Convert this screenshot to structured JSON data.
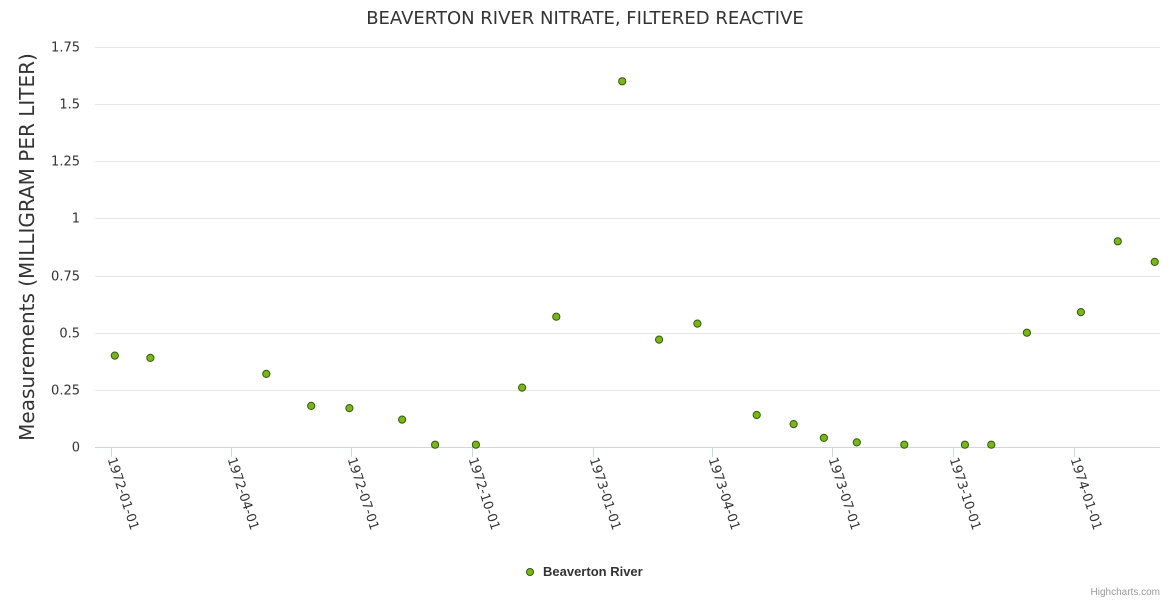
{
  "colors": {
    "point_fill": "#7cb518",
    "point_stroke": "#2f5c0a"
  },
  "credits": "Highcharts.com",
  "chart_data": {
    "type": "scatter",
    "title": "BEAVERTON RIVER NITRATE, FILTERED REACTIVE",
    "xlabel": "",
    "ylabel": "Measurements (MILLIGRAM PER LITER)",
    "ylim": [
      0,
      1.75
    ],
    "yticks": [
      "0",
      "0.25",
      "0.5",
      "0.75",
      "1",
      "1.25",
      "1.5",
      "1.75"
    ],
    "xlim": [
      "1971-12-20",
      "1974-03-07"
    ],
    "xticks": [
      "1972-01-01",
      "1972-04-01",
      "1972-07-01",
      "1972-10-01",
      "1973-01-01",
      "1973-04-01",
      "1973-07-01",
      "1973-10-01",
      "1974-01-01"
    ],
    "grid": true,
    "legend": "bottom-center",
    "series": [
      {
        "name": "Beaverton River",
        "points": [
          {
            "x": "1972-01-04",
            "y": 0.4
          },
          {
            "x": "1972-01-31",
            "y": 0.39
          },
          {
            "x": "1972-04-28",
            "y": 0.32
          },
          {
            "x": "1972-06-01",
            "y": 0.18
          },
          {
            "x": "1972-06-30",
            "y": 0.17
          },
          {
            "x": "1972-08-09",
            "y": 0.12
          },
          {
            "x": "1972-09-03",
            "y": 0.01
          },
          {
            "x": "1972-10-04",
            "y": 0.01
          },
          {
            "x": "1972-11-08",
            "y": 0.26
          },
          {
            "x": "1972-12-04",
            "y": 0.57
          },
          {
            "x": "1973-01-23",
            "y": 1.6
          },
          {
            "x": "1973-02-20",
            "y": 0.47
          },
          {
            "x": "1973-03-21",
            "y": 0.54
          },
          {
            "x": "1973-05-05",
            "y": 0.14
          },
          {
            "x": "1973-06-02",
            "y": 0.1
          },
          {
            "x": "1973-06-25",
            "y": 0.04
          },
          {
            "x": "1973-07-20",
            "y": 0.02
          },
          {
            "x": "1973-08-25",
            "y": 0.01
          },
          {
            "x": "1973-10-10",
            "y": 0.01
          },
          {
            "x": "1973-10-30",
            "y": 0.01
          },
          {
            "x": "1973-11-26",
            "y": 0.5
          },
          {
            "x": "1974-01-06",
            "y": 0.59
          },
          {
            "x": "1974-02-03",
            "y": 0.9
          },
          {
            "x": "1974-03-03",
            "y": 0.81
          }
        ]
      }
    ]
  }
}
